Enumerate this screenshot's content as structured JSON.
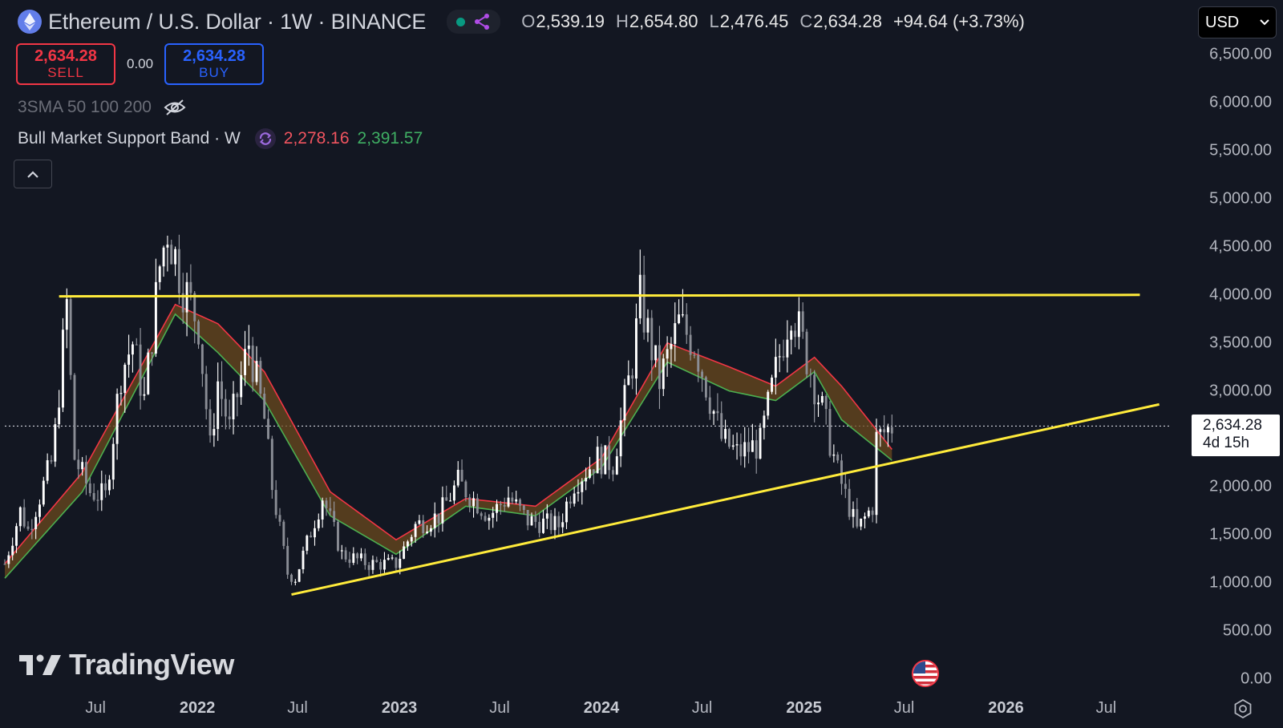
{
  "header": {
    "title": "Ethereum / U.S. Dollar · 1W · BINANCE",
    "ohlc": {
      "open_label": "O",
      "open": "2,539.19",
      "high_label": "H",
      "high": "2,654.80",
      "low_label": "L",
      "low": "2,476.45",
      "close_label": "C",
      "close": "2,634.28",
      "change": "+94.64 (+3.73%)"
    },
    "currency": "USD"
  },
  "trade": {
    "sell_price": "2,634.28",
    "sell_label": "SELL",
    "spread": "0.00",
    "buy_price": "2,634.28",
    "buy_label": "BUY"
  },
  "indicators": {
    "sma_label": "3SMA 50 100 200",
    "band_label": "Bull Market Support Band · W",
    "band_value_1": "2,278.16",
    "band_value_2": "2,391.57"
  },
  "price_tag": {
    "price": "2,634.28",
    "countdown": "4d 15h"
  },
  "watermark": "TradingView",
  "icons": {
    "symbol": "ethereum-icon",
    "status": "status-dot-icon",
    "share": "share-nodes-icon",
    "visibility": "eye-off-icon",
    "indicator": "sync-icon",
    "collapse": "chevron-up-icon",
    "event": "us-flag-icon",
    "settings": "settings-icon",
    "logo": "tradingview-logo-icon"
  },
  "colors": {
    "background": "#131722",
    "bull": "#ffffff",
    "band_red": "#f23645",
    "band_green": "#4caf50",
    "trendline": "#ffeb3b",
    "sell": "#f23645",
    "buy": "#2962ff"
  },
  "chart_data": {
    "type": "candlestick",
    "title": "Ethereum / U.S. Dollar · 1W · BINANCE",
    "timeframe": "1W",
    "y_ticks": [
      "6,500.00",
      "6,000.00",
      "5,500.00",
      "5,000.00",
      "4,500.00",
      "4,000.00",
      "3,500.00",
      "3,000.00",
      "2,000.00",
      "1,500.00",
      "1,000.00",
      "500.00",
      "0.00"
    ],
    "ylim": [
      0,
      6500
    ],
    "x_ticks": [
      {
        "label": "Jul",
        "date": "2021-07-01",
        "bold": false
      },
      {
        "label": "2022",
        "date": "2022-01-01",
        "bold": true
      },
      {
        "label": "Jul",
        "date": "2022-07-01",
        "bold": false
      },
      {
        "label": "2023",
        "date": "2023-01-01",
        "bold": true
      },
      {
        "label": "Jul",
        "date": "2023-07-01",
        "bold": false
      },
      {
        "label": "2024",
        "date": "2024-01-01",
        "bold": true
      },
      {
        "label": "Jul",
        "date": "2024-07-01",
        "bold": false
      },
      {
        "label": "2025",
        "date": "2025-01-01",
        "bold": true
      },
      {
        "label": "Jul",
        "date": "2025-07-01",
        "bold": false
      },
      {
        "label": "2026",
        "date": "2026-01-01",
        "bold": true
      },
      {
        "label": "Jul",
        "date": "2026-07-01",
        "bold": false
      }
    ],
    "xlim": [
      "2021-01-18",
      "2026-10-20"
    ],
    "price_path": [
      [
        "2021-01-18",
        1200
      ],
      [
        "2021-02-15",
        1750
      ],
      [
        "2021-03-01",
        1550
      ],
      [
        "2021-04-15",
        2300
      ],
      [
        "2021-05-10",
        3900
      ],
      [
        "2021-05-24",
        2300
      ],
      [
        "2021-06-21",
        1950
      ],
      [
        "2021-07-19",
        1900
      ],
      [
        "2021-08-16",
        3200
      ],
      [
        "2021-09-06",
        3500
      ],
      [
        "2021-09-27",
        2900
      ],
      [
        "2021-10-25",
        4300
      ],
      [
        "2021-11-08",
        4700
      ],
      [
        "2021-12-06",
        4100
      ],
      [
        "2022-01-03",
        3700
      ],
      [
        "2022-01-24",
        2400
      ],
      [
        "2022-02-07",
        3100
      ],
      [
        "2022-02-28",
        2600
      ],
      [
        "2022-04-04",
        3500
      ],
      [
        "2022-05-02",
        2700
      ],
      [
        "2022-05-16",
        2000
      ],
      [
        "2022-06-13",
        1100
      ],
      [
        "2022-06-27",
        1050
      ],
      [
        "2022-08-15",
        1900
      ],
      [
        "2022-09-19",
        1300
      ],
      [
        "2022-11-07",
        1200
      ],
      [
        "2022-11-28",
        1200
      ],
      [
        "2022-12-26",
        1200
      ],
      [
        "2023-01-30",
        1600
      ],
      [
        "2023-03-13",
        1700
      ],
      [
        "2023-04-17",
        2050
      ],
      [
        "2023-06-12",
        1700
      ],
      [
        "2023-07-17",
        1900
      ],
      [
        "2023-08-21",
        1650
      ],
      [
        "2023-10-16",
        1600
      ],
      [
        "2023-11-13",
        2050
      ],
      [
        "2023-12-25",
        2300
      ],
      [
        "2024-01-22",
        2250
      ],
      [
        "2024-02-26",
        3300
      ],
      [
        "2024-03-11",
        3950
      ],
      [
        "2024-04-15",
        3100
      ],
      [
        "2024-05-20",
        3700
      ],
      [
        "2024-06-17",
        3500
      ],
      [
        "2024-08-05",
        2500
      ],
      [
        "2024-09-02",
        2350
      ],
      [
        "2024-10-14",
        2450
      ],
      [
        "2024-11-11",
        3200
      ],
      [
        "2024-12-09",
        3900
      ],
      [
        "2025-01-06",
        3350
      ],
      [
        "2025-02-03",
        2800
      ],
      [
        "2025-03-03",
        2150
      ],
      [
        "2025-04-07",
        1550
      ],
      [
        "2025-05-05",
        1800
      ],
      [
        "2025-05-12",
        2500
      ],
      [
        "2025-06-09",
        2634.28
      ]
    ],
    "band_path": [
      [
        "2021-01-18",
        1050,
        1200
      ],
      [
        "2021-06-07",
        1950,
        2150
      ],
      [
        "2021-11-22",
        3800,
        3900
      ],
      [
        "2022-02-07",
        3400,
        3700
      ],
      [
        "2022-05-02",
        2900,
        3200
      ],
      [
        "2022-08-29",
        1700,
        1950
      ],
      [
        "2022-12-26",
        1300,
        1450
      ],
      [
        "2023-05-01",
        1800,
        1880
      ],
      [
        "2023-09-04",
        1700,
        1800
      ],
      [
        "2024-01-01",
        2200,
        2300
      ],
      [
        "2024-04-29",
        3300,
        3500
      ],
      [
        "2024-08-19",
        3000,
        3250
      ],
      [
        "2024-11-11",
        2900,
        3050
      ],
      [
        "2025-01-20",
        3200,
        3350
      ],
      [
        "2025-03-10",
        2700,
        3050
      ],
      [
        "2025-06-09",
        2278.16,
        2391.57
      ]
    ],
    "resistance_line": [
      [
        "2021-04-26",
        3985
      ],
      [
        "2026-08-31",
        4000
      ]
    ],
    "support_line": [
      [
        "2022-06-20",
        880
      ],
      [
        "2026-10-05",
        2860
      ]
    ],
    "last_price": 2634.28
  }
}
